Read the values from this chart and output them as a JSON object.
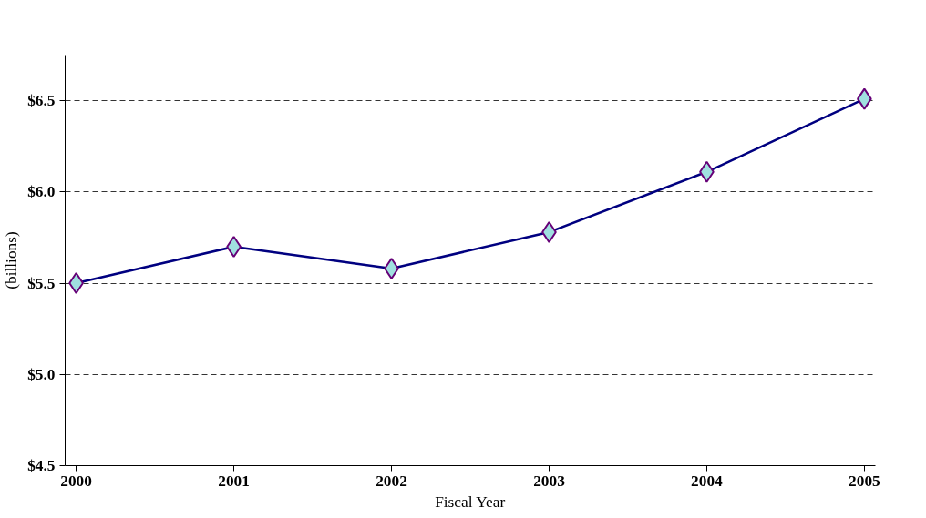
{
  "chart_data": {
    "type": "line",
    "xlabel": "Fiscal Year",
    "ylabel": "(billions)",
    "categories": [
      "2000",
      "2001",
      "2002",
      "2003",
      "2004",
      "2005"
    ],
    "series": [
      {
        "color": "#000080",
        "values": [
          5.5,
          5.7,
          5.58,
          5.78,
          6.11,
          6.51
        ]
      }
    ],
    "ylim": [
      4.5,
      6.75
    ],
    "yticks": [
      {
        "value": 4.5,
        "label": "$4.5"
      },
      {
        "value": 5.0,
        "label": "$5.0"
      },
      {
        "value": 5.5,
        "label": "$5.5"
      },
      {
        "value": 6.0,
        "label": "$6.0"
      },
      {
        "value": 6.5,
        "label": "$6.5"
      }
    ],
    "grid": "y",
    "marker": "diamond",
    "line_style": "solid"
  }
}
